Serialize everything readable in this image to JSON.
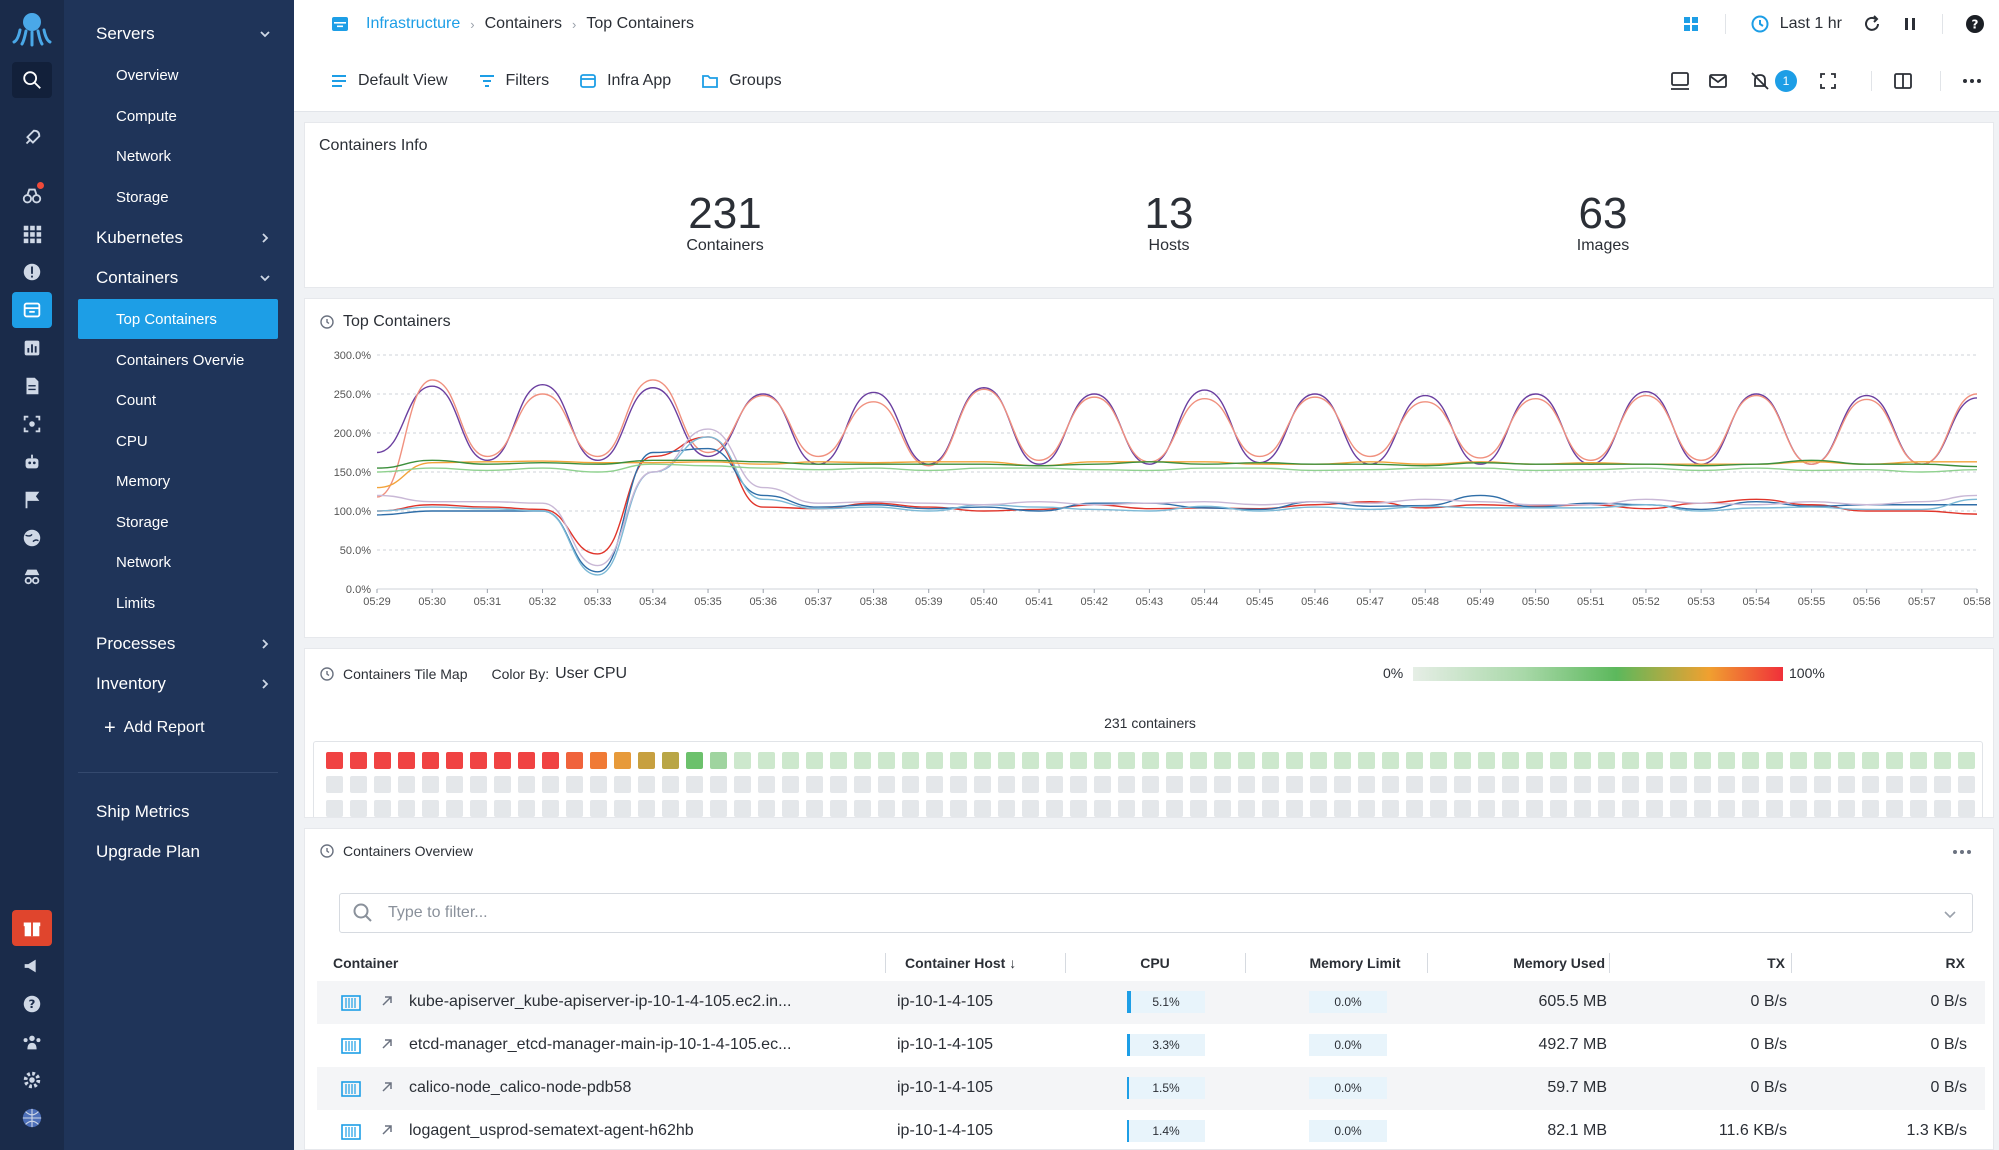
{
  "nav": {
    "sections": [
      {
        "label": "Servers",
        "expanded": true
      },
      {
        "label": "Kubernetes",
        "expanded": false
      },
      {
        "label": "Containers",
        "expanded": true
      },
      {
        "label": "Processes",
        "expanded": false
      },
      {
        "label": "Inventory",
        "expanded": false
      }
    ],
    "servers_children": [
      "Overview",
      "Compute",
      "Network",
      "Storage"
    ],
    "containers_children": [
      "Top Containers",
      "Containers Overvie",
      "Count",
      "CPU",
      "Memory",
      "Storage",
      "Network",
      "Limits"
    ],
    "add_report": "Add Report",
    "ship_metrics": "Ship Metrics",
    "upgrade_plan": "Upgrade Plan"
  },
  "breadcrumb": {
    "root": "Infrastructure",
    "parent": "Containers",
    "current": "Top Containers"
  },
  "header": {
    "time_range": "Last 1 hr"
  },
  "toolbar": {
    "default_view": "Default View",
    "filters": "Filters",
    "infra_app": "Infra App",
    "groups": "Groups",
    "alert_count": "1"
  },
  "containers_info": {
    "title": "Containers Info",
    "stats": [
      {
        "value": "231",
        "label": "Containers"
      },
      {
        "value": "13",
        "label": "Hosts"
      },
      {
        "value": "63",
        "label": "Images"
      }
    ]
  },
  "top_containers": {
    "title": "Top Containers"
  },
  "chart_data": {
    "type": "line",
    "title": "Top Containers",
    "y_ticks": [
      "0.0%",
      "50.0%",
      "100.0%",
      "150.0%",
      "200.0%",
      "250.0%",
      "300.0%"
    ],
    "ylim": [
      0,
      300
    ],
    "x": [
      "05:29",
      "05:30",
      "05:31",
      "05:32",
      "05:33",
      "05:34",
      "05:35",
      "05:36",
      "05:37",
      "05:38",
      "05:39",
      "05:40",
      "05:41",
      "05:42",
      "05:43",
      "05:44",
      "05:45",
      "05:46",
      "05:47",
      "05:48",
      "05:49",
      "05:50",
      "05:51",
      "05:52",
      "05:53",
      "05:54",
      "05:55",
      "05:56",
      "05:57",
      "05:58"
    ],
    "grid": true,
    "series": [
      {
        "color": "#6b3fa0",
        "values": [
          175,
          260,
          165,
          262,
          165,
          258,
          170,
          250,
          160,
          252,
          160,
          258,
          160,
          250,
          160,
          255,
          162,
          250,
          160,
          248,
          160,
          250,
          160,
          253,
          160,
          250,
          160,
          248,
          160,
          245
        ]
      },
      {
        "color": "#f0917f",
        "values": [
          118,
          268,
          170,
          250,
          170,
          268,
          175,
          248,
          170,
          240,
          158,
          256,
          165,
          246,
          163,
          244,
          170,
          246,
          170,
          240,
          168,
          244,
          165,
          248,
          165,
          248,
          160,
          243,
          160,
          250
        ]
      },
      {
        "color": "#e0352b",
        "values": [
          100,
          108,
          105,
          102,
          45,
          170,
          195,
          105,
          103,
          110,
          105,
          100,
          102,
          108,
          103,
          104,
          103,
          108,
          112,
          104,
          108,
          106,
          108,
          103,
          110,
          115,
          108,
          100,
          100,
          96
        ]
      },
      {
        "color": "#2f6ea8",
        "values": [
          95,
          100,
          100,
          100,
          22,
          175,
          180,
          120,
          105,
          108,
          103,
          105,
          100,
          110,
          110,
          104,
          102,
          112,
          106,
          107,
          120,
          105,
          110,
          108,
          102,
          112,
          106,
          108,
          108,
          108
        ]
      },
      {
        "color": "#7cb9d6",
        "values": [
          100,
          105,
          103,
          100,
          18,
          150,
          195,
          115,
          103,
          105,
          100,
          108,
          105,
          102,
          100,
          106,
          100,
          105,
          102,
          106,
          104,
          104,
          104,
          108,
          100,
          104,
          105,
          102,
          102,
          115
        ]
      },
      {
        "color": "#c9b8d6",
        "values": [
          120,
          112,
          112,
          110,
          30,
          150,
          205,
          130,
          110,
          112,
          110,
          108,
          112,
          108,
          110,
          112,
          108,
          112,
          110,
          115,
          112,
          108,
          108,
          115,
          110,
          108,
          112,
          108,
          112,
          120
        ]
      },
      {
        "color": "#f2a33a",
        "values": [
          130,
          162,
          163,
          164,
          162,
          162,
          163,
          160,
          163,
          162,
          163,
          163,
          158,
          163,
          163,
          163,
          160,
          160,
          163,
          160,
          163,
          160,
          162,
          160,
          160,
          160,
          163,
          160,
          163,
          163
        ]
      },
      {
        "color": "#3c8f3c",
        "values": [
          155,
          165,
          160,
          162,
          160,
          165,
          165,
          163,
          160,
          160,
          160,
          160,
          158,
          160,
          163,
          160,
          162,
          160,
          160,
          158,
          162,
          160,
          160,
          160,
          158,
          160,
          165,
          160,
          160,
          157
        ]
      },
      {
        "color": "#8fd18f",
        "values": [
          150,
          155,
          152,
          155,
          150,
          160,
          158,
          155,
          153,
          155,
          152,
          155,
          155,
          153,
          152,
          155,
          155,
          152,
          153,
          155,
          155,
          152,
          153,
          155,
          152,
          155,
          152,
          153,
          150,
          153
        ]
      }
    ]
  },
  "tile_map": {
    "title": "Containers Tile Map",
    "color_by_label": "Color By:",
    "color_by_value": "User CPU",
    "scale_min": "0%",
    "scale_max": "100%",
    "count_label": "231 containers",
    "hot_tiles": [
      "#f04343",
      "#f04343",
      "#f04343",
      "#f04343",
      "#f04343",
      "#f04343",
      "#f04343",
      "#f04343",
      "#f04343",
      "#f04343",
      "#f0633c",
      "#f07a35",
      "#e79a3a",
      "#c7a040",
      "#b9a646",
      "#6cc16c",
      "#9fd49f"
    ]
  },
  "overview": {
    "title": "Containers Overview",
    "filter_placeholder": "Type to filter...",
    "columns": [
      "Container",
      "Container Host ↓",
      "CPU",
      "Memory Limit",
      "Memory Used",
      "TX",
      "RX"
    ],
    "rows": [
      {
        "container": "kube-apiserver_kube-apiserver-ip-10-1-4-105.ec2.in...",
        "host": "ip-10-1-4-105",
        "cpu": "5.1%",
        "cpu_frac": 0.051,
        "mem_limit": "0.0%",
        "mem_used": "605.5 MB",
        "tx": "0 B/s",
        "rx": "0 B/s"
      },
      {
        "container": "etcd-manager_etcd-manager-main-ip-10-1-4-105.ec...",
        "host": "ip-10-1-4-105",
        "cpu": "3.3%",
        "cpu_frac": 0.033,
        "mem_limit": "0.0%",
        "mem_used": "492.7 MB",
        "tx": "0 B/s",
        "rx": "0 B/s"
      },
      {
        "container": "calico-node_calico-node-pdb58",
        "host": "ip-10-1-4-105",
        "cpu": "1.5%",
        "cpu_frac": 0.015,
        "mem_limit": "0.0%",
        "mem_used": "59.7 MB",
        "tx": "0 B/s",
        "rx": "0 B/s"
      },
      {
        "container": "logagent_usprod-sematext-agent-h62hb",
        "host": "ip-10-1-4-105",
        "cpu": "1.4%",
        "cpu_frac": 0.014,
        "mem_limit": "0.0%",
        "mem_used": "82.1 MB",
        "tx": "11.6 KB/s",
        "rx": "1.3 KB/s"
      }
    ]
  }
}
